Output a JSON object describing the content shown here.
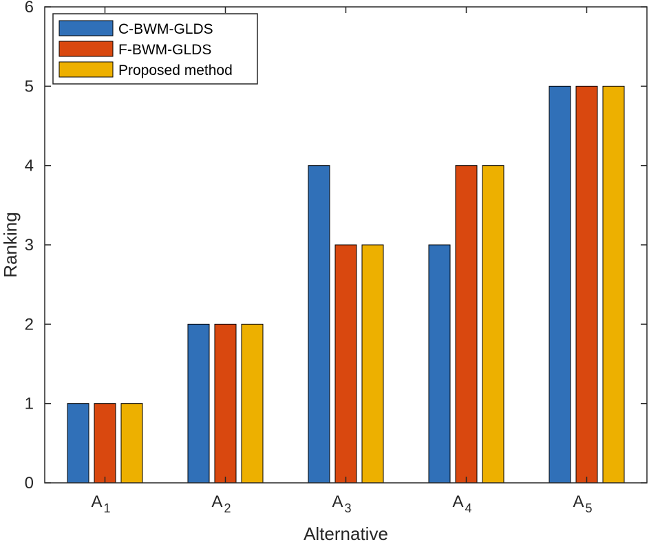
{
  "chart_data": {
    "type": "bar",
    "xlabel": "Alternative",
    "ylabel": "Ranking",
    "ylim": [
      0,
      6
    ],
    "yticks": [
      "0",
      "1",
      "2",
      "3",
      "4",
      "5",
      "6"
    ],
    "categories": [
      {
        "base": "A",
        "sub": "1"
      },
      {
        "base": "A",
        "sub": "2"
      },
      {
        "base": "A",
        "sub": "3"
      },
      {
        "base": "A",
        "sub": "4"
      },
      {
        "base": "A",
        "sub": "5"
      }
    ],
    "series": [
      {
        "name": "C-BWM-GLDS",
        "color": "#3070B8",
        "values": [
          1,
          2,
          4,
          3,
          5
        ]
      },
      {
        "name": "F-BWM-GLDS",
        "color": "#D9480F",
        "values": [
          1,
          2,
          3,
          4,
          5
        ]
      },
      {
        "name": "Proposed method",
        "color": "#EDB000",
        "values": [
          1,
          2,
          3,
          4,
          5
        ]
      }
    ],
    "legend": "top-left",
    "grid": false
  }
}
